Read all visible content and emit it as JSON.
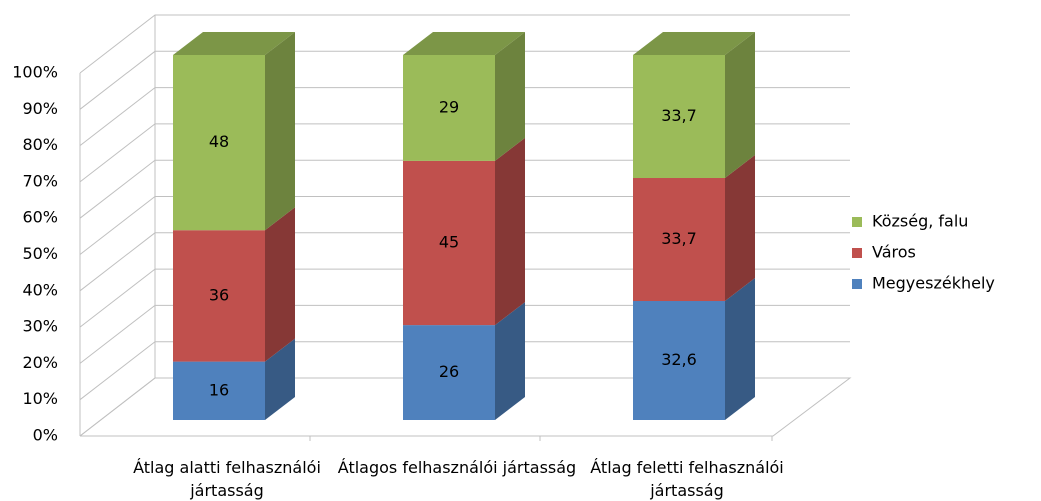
{
  "chart_data": {
    "type": "bar3d_stacked",
    "categories": [
      "Átlag alatti felhasználói jártasság",
      "Átlagos felhasználói jártasság",
      "Átlag feletti felhasználói jártasság"
    ],
    "series": [
      {
        "name": "Megyeszékhely",
        "color": "#4f81bd",
        "values": [
          16,
          26,
          32.6
        ],
        "value_labels": [
          "16",
          "26",
          "32,6"
        ]
      },
      {
        "name": "Város",
        "color": "#c0504d",
        "values": [
          36,
          45,
          33.7
        ],
        "value_labels": [
          "36",
          "45",
          "33,7"
        ]
      },
      {
        "name": "Község, falu",
        "color": "#9bbb59",
        "values": [
          48,
          29,
          33.7
        ],
        "value_labels": [
          "48",
          "29",
          "33,7"
        ]
      }
    ],
    "ylim": [
      0,
      100
    ],
    "yticks": [
      {
        "value": 0,
        "label": "0%"
      },
      {
        "value": 10,
        "label": "10%"
      },
      {
        "value": 20,
        "label": "20%"
      },
      {
        "value": 30,
        "label": "30%"
      },
      {
        "value": 40,
        "label": "40%"
      },
      {
        "value": 50,
        "label": "50%"
      },
      {
        "value": 60,
        "label": "60%"
      },
      {
        "value": 70,
        "label": "70%"
      },
      {
        "value": 80,
        "label": "80%"
      },
      {
        "value": 90,
        "label": "90%"
      },
      {
        "value": 100,
        "label": "100%"
      }
    ],
    "grid": true,
    "legend": "right"
  }
}
